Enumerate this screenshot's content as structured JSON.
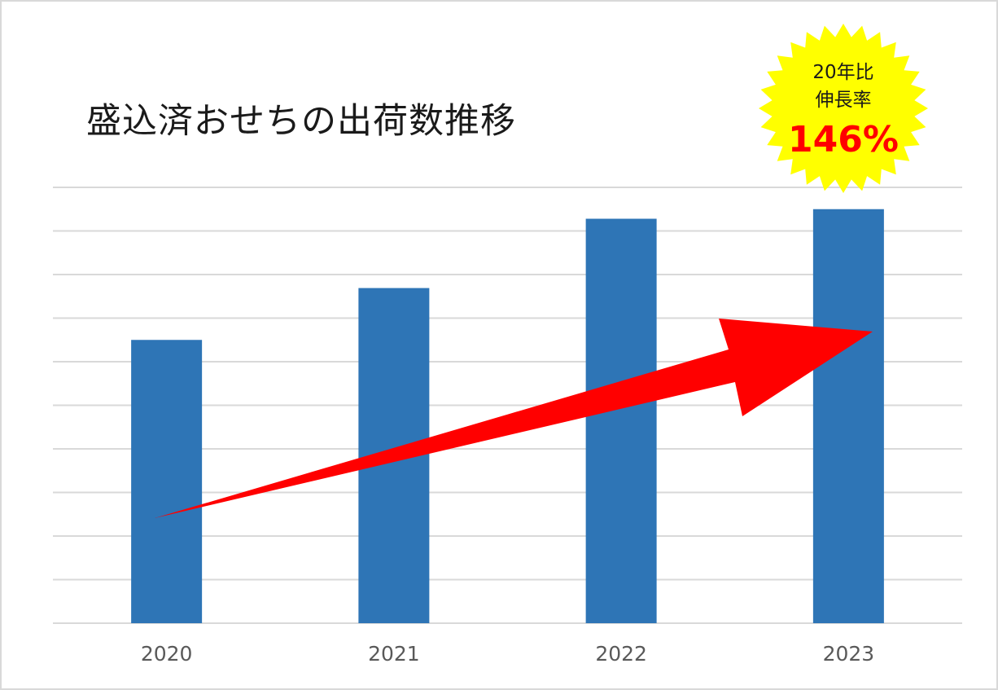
{
  "chart_data": {
    "type": "bar",
    "title": "盛込済おせちの出荷数推移",
    "categories": [
      "2020",
      "2021",
      "2022",
      "2023"
    ],
    "values": [
      65,
      76.9,
      92.8,
      95
    ],
    "ylim": [
      0,
      100
    ],
    "grid": true,
    "bar_color": "#2e75b6",
    "arrow_color": "#ff0000",
    "badge": {
      "line1": "20年比",
      "line2": "伸長率",
      "value": "146%",
      "fill_color": "#ffff00",
      "value_color": "#ff0000"
    }
  }
}
